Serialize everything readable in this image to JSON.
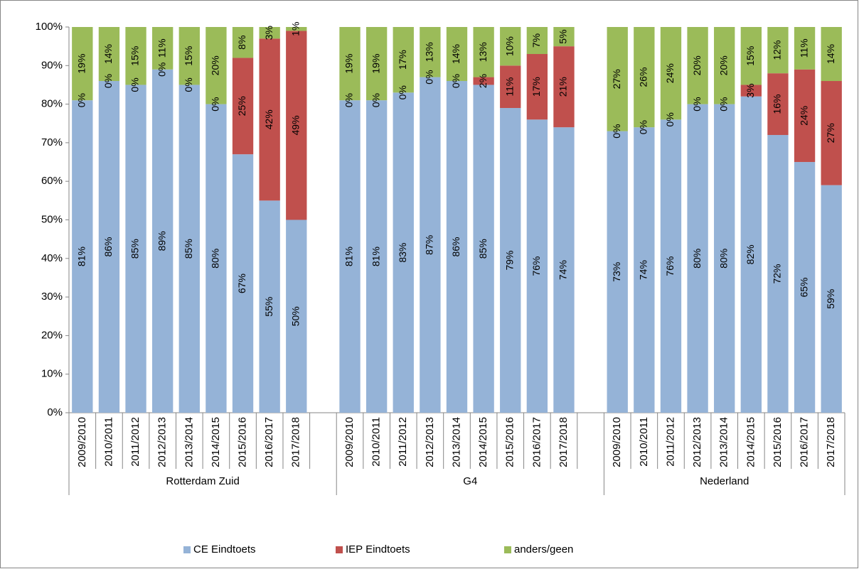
{
  "chart_data": {
    "type": "stacked_bar",
    "categories": [
      "2009/2010",
      "2010/2011",
      "2011/2012",
      "2012/2013",
      "2013/2014",
      "2014/2015",
      "2015/2016",
      "2016/2017",
      "2017/2018",
      null,
      "2009/2010",
      "2010/2011",
      "2011/2012",
      "2012/2013",
      "2013/2014",
      "2014/2015",
      "2015/2016",
      "2016/2017",
      "2017/2018",
      null,
      "2009/2010",
      "2010/2011",
      "2011/2012",
      "2012/2013",
      "2013/2014",
      "2014/2015",
      "2015/2016",
      "2016/2017",
      "2017/2018"
    ],
    "groups": [
      "Rotterdam Zuid",
      "G4",
      "Nederland"
    ],
    "series": [
      {
        "name": "CE Eindtoets",
        "color": "#95b3d7",
        "values": [
          81,
          86,
          85,
          89,
          85,
          80,
          67,
          55,
          50,
          null,
          81,
          81,
          83,
          87,
          86,
          85,
          79,
          76,
          74,
          null,
          73,
          74,
          76,
          80,
          80,
          82,
          72,
          65,
          59
        ],
        "value_labels": [
          "81%",
          "86%",
          "85%",
          "89%",
          "85%",
          "80%",
          "67%",
          "55%",
          "50%",
          null,
          "81%",
          "81%",
          "83%",
          "87%",
          "86%",
          "85%",
          "79%",
          "76%",
          "74%",
          null,
          "73%",
          "74%",
          "76%",
          "80%",
          "80%",
          "82%",
          "72%",
          "65%",
          "59%"
        ]
      },
      {
        "name": "IEP Eindtoets",
        "color": "#c0504d",
        "values": [
          0,
          0,
          0,
          0,
          0,
          0,
          25,
          42,
          49,
          null,
          0,
          0,
          0,
          0,
          0,
          2,
          11,
          17,
          21,
          null,
          0,
          0,
          0,
          0,
          0,
          3,
          16,
          24,
          27
        ],
        "value_labels": [
          "0%",
          "0%",
          "0%",
          "0%",
          "0%",
          "0%",
          "25%",
          "42%",
          "49%",
          null,
          "0%",
          "0%",
          "0%",
          "0%",
          "0%",
          "2%",
          "11%",
          "17%",
          "21%",
          null,
          "0%",
          "0%",
          "0%",
          "0%",
          "0%",
          "3%",
          "16%",
          "24%",
          "27%"
        ]
      },
      {
        "name": "anders/geen",
        "color": "#9bbb59",
        "values": [
          19,
          14,
          15,
          11,
          15,
          20,
          8,
          3,
          1,
          null,
          19,
          19,
          17,
          13,
          14,
          13,
          10,
          7,
          5,
          null,
          27,
          26,
          24,
          20,
          20,
          15,
          12,
          11,
          14
        ],
        "value_labels": [
          "19%",
          "14%",
          "15%",
          "11%",
          "15%",
          "20%",
          "8%",
          "3%",
          "1%",
          null,
          "19%",
          "19%",
          "17%",
          "13%",
          "14%",
          "13%",
          "10%",
          "7%",
          "5%",
          null,
          "27%",
          "26%",
          "24%",
          "20%",
          "20%",
          "15%",
          "12%",
          "11%",
          "14%"
        ]
      }
    ],
    "ylim": [
      0,
      100
    ],
    "yticks": [
      {
        "value": 0,
        "label": "0%"
      },
      {
        "value": 10,
        "label": "10%"
      },
      {
        "value": 20,
        "label": "20%"
      },
      {
        "value": 30,
        "label": "30%"
      },
      {
        "value": 40,
        "label": "40%"
      },
      {
        "value": 50,
        "label": "50%"
      },
      {
        "value": 60,
        "label": "60%"
      },
      {
        "value": 70,
        "label": "70%"
      },
      {
        "value": 80,
        "label": "80%"
      },
      {
        "value": 90,
        "label": "90%"
      },
      {
        "value": 100,
        "label": "100%"
      }
    ],
    "grid": false,
    "legend": "bottom"
  }
}
